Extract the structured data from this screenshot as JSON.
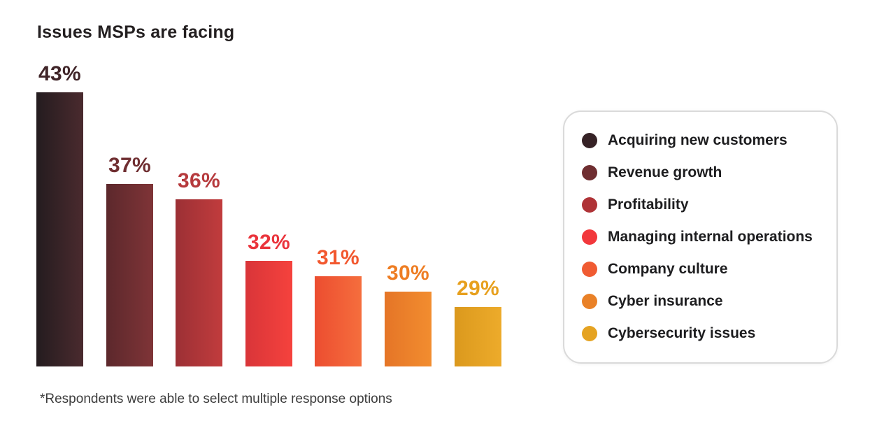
{
  "page": {
    "title": "Issues MSPs are facing",
    "footnote": "*Respondents were able to select multiple response options",
    "background": "#ffffff",
    "title_color": "#231f20",
    "footnote_color": "#3d3d3d"
  },
  "legend": {
    "position": "right",
    "border_color": "#dadada",
    "background": "#ffffff"
  },
  "chart_data": {
    "type": "bar",
    "title": "Issues MSPs are facing",
    "xlabel": "",
    "ylabel": "",
    "value_suffix": "%",
    "grid": false,
    "axes_shown": false,
    "legend_position": "right",
    "ylim": [
      25,
      45
    ],
    "categories": [
      "Acquiring new customers",
      "Revenue growth",
      "Profitability",
      "Managing internal operations",
      "Company culture",
      "Cyber insurance",
      "Cybersecurity issues"
    ],
    "values": [
      43,
      37,
      36,
      32,
      31,
      30,
      29
    ],
    "series": [
      {
        "label": "Acquiring new customers",
        "value": 43,
        "display": "43%",
        "color": "#362226",
        "label_color": "#402529",
        "gradient": [
          "#241c1f",
          "#4a2a2e"
        ]
      },
      {
        "label": "Revenue growth",
        "value": 37,
        "display": "37%",
        "color": "#6f2e31",
        "label_color": "#6f2e31",
        "gradient": [
          "#5c282c",
          "#7f3437"
        ]
      },
      {
        "label": "Profitability",
        "value": 36,
        "display": "36%",
        "color": "#af3337",
        "label_color": "#b63a3d",
        "gradient": [
          "#9c3035",
          "#c13c3d"
        ]
      },
      {
        "label": "Managing internal operations",
        "value": 32,
        "display": "32%",
        "color": "#f2383c",
        "label_color": "#ea343c",
        "gradient": [
          "#d93539",
          "#f5423d"
        ]
      },
      {
        "label": "Company culture",
        "value": 31,
        "display": "31%",
        "color": "#f05b32",
        "label_color": "#f2582f",
        "gradient": [
          "#ec4d30",
          "#f56e3d"
        ]
      },
      {
        "label": "Cyber insurance",
        "value": 30,
        "display": "30%",
        "color": "#e98127",
        "label_color": "#ee7d23",
        "gradient": [
          "#e57527",
          "#f28d2f"
        ]
      },
      {
        "label": "Cybersecurity issues",
        "value": 29,
        "display": "29%",
        "color": "#e5a322",
        "label_color": "#e7a01e",
        "gradient": [
          "#db991d",
          "#edab2b"
        ]
      }
    ]
  }
}
